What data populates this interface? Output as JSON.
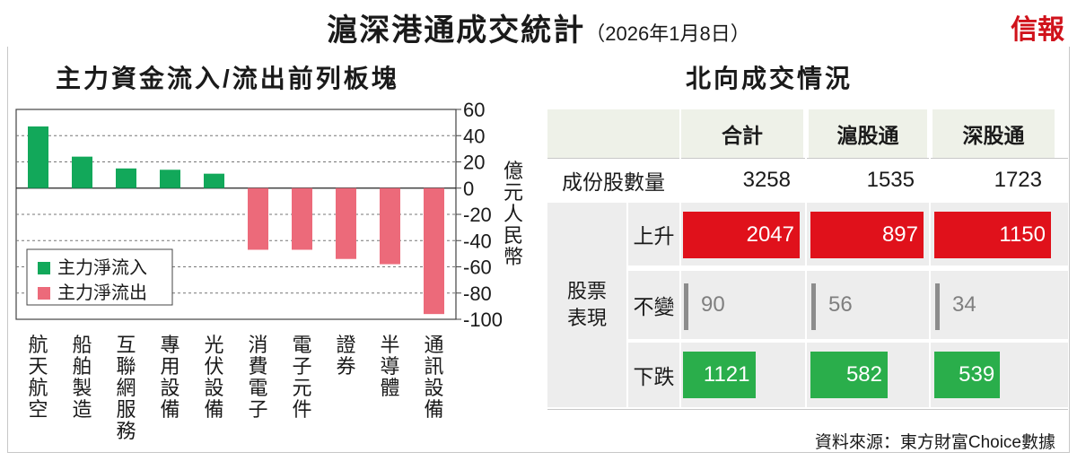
{
  "title": "滬深港通成交統計",
  "date": "（2026年1月8日）",
  "brand": "信報",
  "left_title": "主力資金流入/流出前列板塊",
  "right_title": "北向成交情況",
  "source": "資料來源：東方財富Choice數據",
  "colors": {
    "inflow": "#12a85a",
    "outflow": "#ec6a7a",
    "up": "#e0111b",
    "down": "#2aae4b",
    "flat": "#8c8c8c"
  },
  "chart_data": {
    "type": "bar",
    "categories": [
      "航天航空",
      "船舶製造",
      "互聯網服務",
      "專用設備",
      "光伏設備",
      "消費電子",
      "電子元件",
      "證券",
      "半導體",
      "通訊設備"
    ],
    "series": [
      {
        "name": "主力淨流入",
        "values": [
          47,
          24,
          15,
          14,
          11,
          null,
          null,
          null,
          null,
          null
        ]
      },
      {
        "name": "主力淨流出",
        "values": [
          null,
          null,
          null,
          null,
          null,
          -47,
          -47,
          -54,
          -58,
          -96
        ]
      }
    ],
    "ylabel": "億元人民幣",
    "ylim": [
      -100,
      60
    ],
    "yticks": [
      "60",
      "40",
      "20",
      "0",
      "-20",
      "-40",
      "-60",
      "-80",
      "-100"
    ],
    "legend": "bottom-left",
    "grid": "dashed"
  },
  "table": {
    "columns": [
      "合計",
      "滬股通",
      "深股通"
    ],
    "rows": {
      "constituents": {
        "label": "成份股數量",
        "values": [
          "3258",
          "1535",
          "1723"
        ]
      },
      "group_label": "股票表現",
      "up": {
        "label": "上升",
        "values": [
          2047,
          897,
          1150
        ]
      },
      "flat": {
        "label": "不變",
        "values": [
          90,
          56,
          34
        ]
      },
      "down": {
        "label": "下跌",
        "values": [
          1121,
          582,
          539
        ]
      }
    }
  }
}
